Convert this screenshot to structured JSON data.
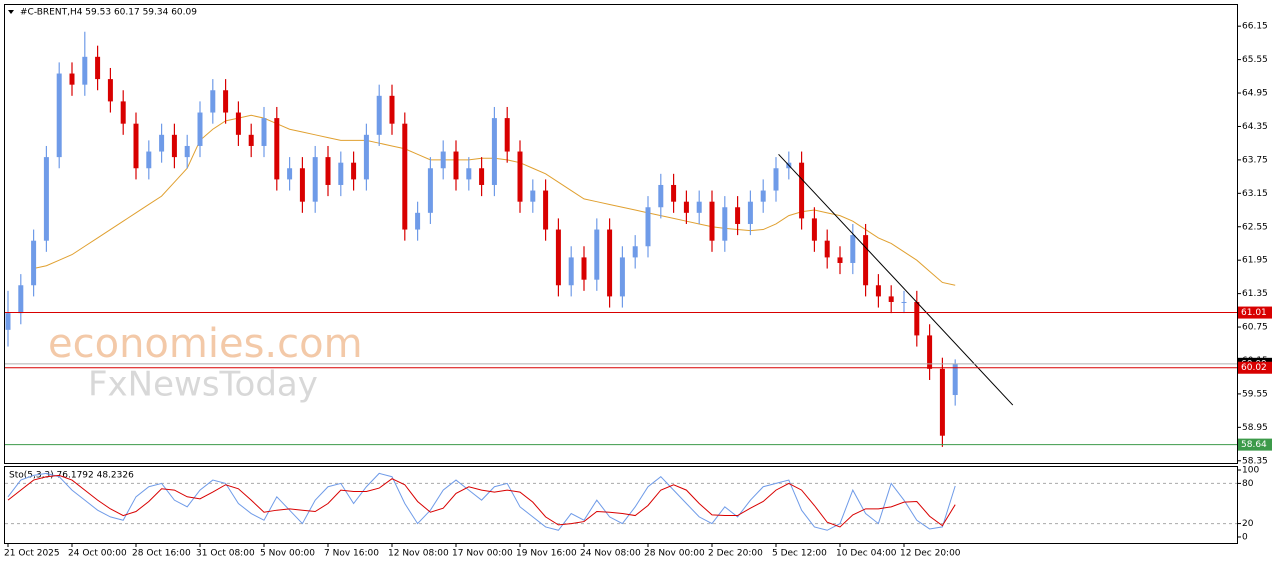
{
  "header": {
    "title": "#C-BRENT,H4  59.53 60.17 59.34 60.09"
  },
  "watermark": {
    "brand": "economies.com",
    "sub": "FxNewsToday"
  },
  "chart_data": [
    {
      "type": "candlestick",
      "categories": [
        "21 Oct 2025",
        null,
        null,
        null,
        null,
        "24 Oct 00:00",
        null,
        null,
        null,
        null,
        "28 Oct 16:00",
        null,
        null,
        null,
        null,
        "31 Oct 08:00",
        null,
        null,
        null,
        null,
        "5 Nov 00:00",
        null,
        null,
        null,
        null,
        "7 Nov 16:00",
        null,
        null,
        null,
        null,
        "12 Nov 08:00",
        null,
        null,
        null,
        null,
        "17 Nov 00:00",
        null,
        null,
        null,
        null,
        "19 Nov 16:00",
        null,
        null,
        null,
        null,
        "24 Nov 08:00",
        null,
        null,
        null,
        null,
        "28 Nov 00:00",
        null,
        null,
        null,
        null,
        "2 Dec 20:00",
        null,
        null,
        null,
        null,
        "5 Dec 12:00",
        null,
        null,
        null,
        null,
        "10 Dec 04:00",
        null,
        null,
        null,
        null,
        "12 Dec 20:00",
        null,
        null,
        null,
        null
      ],
      "open": [
        60.7,
        61.0,
        61.5,
        62.3,
        63.8,
        65.3,
        65.1,
        65.6,
        65.2,
        64.8,
        64.4,
        63.6,
        63.9,
        64.2,
        63.8,
        64.0,
        64.6,
        65.0,
        64.6,
        64.2,
        64.0,
        64.5,
        63.4,
        63.6,
        63.0,
        63.8,
        63.3,
        63.7,
        63.4,
        64.2,
        64.9,
        64.4,
        62.5,
        62.8,
        63.6,
        63.9,
        63.4,
        63.6,
        63.3,
        64.5,
        63.9,
        63.0,
        63.2,
        62.5,
        61.5,
        62.0,
        61.6,
        62.5,
        61.3,
        62.0,
        62.2,
        62.9,
        63.3,
        63.0,
        62.8,
        63.0,
        62.3,
        62.9,
        62.6,
        63.0,
        63.2,
        63.6,
        63.7,
        62.7,
        62.3,
        62.0,
        61.9,
        62.4,
        61.5,
        61.3,
        61.2,
        61.2,
        60.6,
        60.0,
        59.53
      ],
      "high": [
        61.4,
        61.7,
        62.5,
        64.0,
        65.5,
        65.5,
        66.05,
        65.8,
        65.4,
        65.0,
        64.6,
        64.1,
        64.4,
        64.4,
        64.2,
        64.8,
        65.2,
        65.2,
        64.8,
        64.4,
        64.7,
        64.7,
        63.8,
        63.8,
        64.0,
        64.0,
        63.9,
        63.9,
        64.4,
        65.1,
        65.1,
        64.6,
        63.0,
        63.8,
        64.1,
        64.1,
        63.8,
        63.8,
        64.7,
        64.7,
        64.1,
        63.4,
        63.4,
        62.7,
        62.2,
        62.2,
        62.7,
        62.7,
        62.2,
        62.4,
        63.1,
        63.5,
        63.5,
        63.2,
        63.2,
        63.2,
        63.1,
        63.1,
        63.2,
        63.4,
        63.8,
        63.9,
        63.9,
        62.9,
        62.5,
        62.2,
        62.6,
        62.6,
        61.7,
        61.5,
        61.4,
        61.4,
        60.8,
        60.2,
        60.17
      ],
      "low": [
        60.4,
        60.8,
        61.3,
        62.1,
        63.6,
        64.9,
        64.9,
        65.0,
        64.6,
        64.2,
        63.4,
        63.4,
        63.7,
        63.6,
        63.6,
        63.8,
        64.4,
        64.4,
        64.0,
        63.8,
        63.8,
        63.2,
        63.2,
        62.8,
        62.8,
        63.1,
        63.1,
        63.2,
        63.2,
        64.0,
        64.2,
        62.3,
        62.3,
        62.6,
        63.4,
        63.2,
        63.2,
        63.1,
        63.1,
        63.7,
        62.8,
        62.8,
        62.3,
        61.3,
        61.3,
        61.4,
        61.4,
        61.1,
        61.1,
        61.8,
        62.0,
        62.7,
        62.8,
        62.6,
        62.6,
        62.1,
        62.1,
        62.4,
        62.4,
        62.8,
        63.0,
        63.4,
        62.5,
        62.1,
        61.8,
        61.7,
        61.7,
        61.3,
        61.1,
        61.0,
        61.0,
        60.4,
        59.8,
        58.6,
        59.34
      ],
      "close": [
        61.0,
        61.5,
        62.3,
        63.8,
        65.3,
        65.1,
        65.6,
        65.2,
        64.8,
        64.4,
        63.6,
        63.9,
        64.2,
        63.8,
        64.0,
        64.6,
        65.0,
        64.6,
        64.2,
        64.0,
        64.5,
        63.4,
        63.6,
        63.0,
        63.8,
        63.3,
        63.7,
        63.4,
        64.2,
        64.9,
        64.4,
        62.5,
        62.8,
        63.6,
        63.9,
        63.4,
        63.6,
        63.3,
        64.5,
        63.9,
        63.0,
        63.2,
        62.5,
        61.5,
        62.0,
        61.6,
        62.5,
        61.3,
        62.0,
        62.2,
        62.9,
        63.3,
        63.0,
        62.8,
        63.0,
        62.3,
        62.9,
        62.6,
        63.0,
        63.2,
        63.6,
        63.7,
        62.7,
        62.3,
        62.0,
        61.9,
        62.4,
        61.5,
        61.3,
        61.2,
        61.2,
        60.6,
        60.0,
        58.8,
        60.09
      ],
      "up_color": "#6f9be8",
      "down_color": "#d80000",
      "ylim": [
        58.31,
        66.53
      ],
      "yticks": [
        66.15,
        65.55,
        64.95,
        64.35,
        63.75,
        63.15,
        62.55,
        61.95,
        61.35,
        60.75,
        60.15,
        59.55,
        58.95,
        58.35
      ],
      "ma": {
        "color": "#e0a030",
        "values": [
          null,
          null,
          61.8,
          61.85,
          61.95,
          62.05,
          62.2,
          62.35,
          62.5,
          62.65,
          62.8,
          62.95,
          63.1,
          63.35,
          63.6,
          64.1,
          64.3,
          64.45,
          64.5,
          64.55,
          64.5,
          64.4,
          64.3,
          64.25,
          64.2,
          64.15,
          64.1,
          64.1,
          64.1,
          64.05,
          64.0,
          63.95,
          63.85,
          63.75,
          63.75,
          63.75,
          63.75,
          63.78,
          63.78,
          63.75,
          63.7,
          63.6,
          63.5,
          63.35,
          63.2,
          63.05,
          63.0,
          62.95,
          62.9,
          62.85,
          62.8,
          62.75,
          62.7,
          62.65,
          62.6,
          62.55,
          62.52,
          62.5,
          62.48,
          62.5,
          62.6,
          62.75,
          62.82,
          62.85,
          62.8,
          62.75,
          62.65,
          62.5,
          62.35,
          62.25,
          62.1,
          61.95,
          61.75,
          61.55,
          61.5
        ]
      },
      "trendline": {
        "color": "#000000",
        "x": [
          60.2,
          78.5
        ],
        "y": [
          63.85,
          59.35
        ]
      },
      "levels": [
        {
          "value": 61.01,
          "color": "#d80000",
          "box": "#d80000"
        },
        {
          "value": 60.09,
          "color": "#b0b0b0",
          "box": "#000000"
        },
        {
          "value": 60.02,
          "color": "#d80000",
          "box": "#d80000"
        },
        {
          "value": 58.64,
          "color": "#3c9a4a",
          "box": "#3c9a4a"
        }
      ]
    },
    {
      "type": "line",
      "title": "Sto(5,3,3) 76.1792 48.2326",
      "series": [
        {
          "color": "#6f9be8",
          "values": [
            60,
            85,
            92,
            95,
            90,
            70,
            55,
            40,
            30,
            25,
            60,
            75,
            80,
            55,
            45,
            70,
            85,
            80,
            50,
            35,
            25,
            60,
            40,
            20,
            55,
            75,
            80,
            50,
            75,
            95,
            90,
            50,
            20,
            40,
            70,
            85,
            70,
            55,
            75,
            80,
            45,
            30,
            15,
            10,
            35,
            25,
            55,
            30,
            20,
            45,
            75,
            90,
            70,
            50,
            30,
            20,
            45,
            30,
            55,
            75,
            80,
            85,
            40,
            15,
            10,
            20,
            70,
            35,
            20,
            80,
            55,
            25,
            12,
            15,
            76.1792
          ]
        },
        {
          "color": "#d80000",
          "values": [
            55,
            70,
            85,
            90,
            92,
            85,
            70,
            55,
            42,
            32,
            38,
            53,
            72,
            70,
            60,
            57,
            67,
            78,
            72,
            55,
            37,
            40,
            42,
            40,
            38,
            50,
            70,
            68,
            68,
            73,
            87,
            78,
            53,
            37,
            43,
            65,
            75,
            70,
            67,
            70,
            67,
            52,
            30,
            18,
            20,
            23,
            38,
            37,
            35,
            32,
            47,
            70,
            78,
            70,
            50,
            33,
            32,
            32,
            43,
            53,
            70,
            80,
            70,
            47,
            22,
            15,
            33,
            42,
            42,
            45,
            52,
            53,
            31,
            17,
            48.2326
          ]
        }
      ],
      "ylim": [
        -9,
        106
      ],
      "yticks": [
        100,
        80,
        20,
        0
      ],
      "dashed": [
        1,
        2
      ]
    }
  ]
}
